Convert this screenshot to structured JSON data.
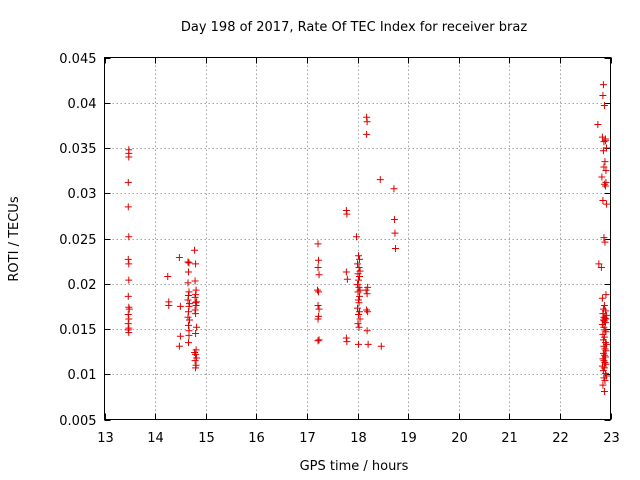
{
  "chart_data": {
    "type": "scatter",
    "title": "Day 198 of 2017, Rate Of TEC Index for receiver braz",
    "xlabel": "GPS time / hours",
    "ylabel": "ROTI / TECUs",
    "xlim": [
      13,
      23
    ],
    "ylim": [
      0.005,
      0.045
    ],
    "xticks": [
      13,
      14,
      15,
      16,
      17,
      18,
      19,
      20,
      21,
      22,
      23
    ],
    "xtick_labels": [
      "13",
      "14",
      "15",
      "16",
      "17",
      "18",
      "19",
      "20",
      "21",
      "22",
      "23"
    ],
    "yticks": [
      0.005,
      0.01,
      0.015,
      0.02,
      0.025,
      0.03,
      0.035,
      0.04,
      0.045
    ],
    "ytick_labels": [
      "0.005",
      "0.01",
      "0.015",
      "0.02",
      "0.025",
      "0.03",
      "0.035",
      "0.04",
      "0.045"
    ],
    "grid": true,
    "marker": "+",
    "marker_color": "#e00000",
    "series": [
      {
        "x": [
          13.48,
          13.48,
          13.48,
          13.47,
          13.47,
          13.48,
          13.47,
          13.48,
          13.48,
          13.47,
          13.48,
          13.49,
          13.47,
          13.48,
          13.47,
          13.48,
          13.47,
          13.48,
          14.25,
          14.27,
          14.27,
          14.48,
          14.5,
          14.5,
          14.48,
          14.65,
          14.67,
          14.66,
          14.65,
          14.67,
          14.66,
          14.65,
          14.68,
          14.67,
          14.66,
          14.65,
          14.68,
          14.66,
          14.67,
          14.67,
          14.66,
          14.78,
          14.8,
          14.79,
          14.81,
          14.8,
          14.79,
          14.82,
          14.8,
          14.81,
          14.79,
          14.8,
          14.82,
          14.8,
          14.81,
          14.78,
          14.8,
          14.82,
          14.79,
          14.81,
          14.8,
          17.22,
          17.23,
          17.22,
          17.24,
          17.21,
          17.23,
          17.22,
          17.24,
          17.23,
          17.22,
          17.24,
          17.22,
          17.78,
          17.79,
          17.78,
          17.8,
          17.78,
          17.79,
          17.98,
          18.02,
          18.04,
          18.0,
          18.03,
          18.05,
          18.01,
          18.04,
          18.02,
          18.0,
          18.03,
          18.05,
          18.01,
          18.04,
          18.02,
          18.03,
          18.0,
          18.04,
          18.02,
          18.05,
          18.01,
          18.03,
          18.02,
          18.18,
          18.19,
          18.18,
          18.2,
          18.17,
          18.19,
          18.18,
          18.2,
          18.19,
          18.21,
          18.45,
          18.47,
          18.72,
          18.73,
          18.74,
          18.75,
          22.75,
          22.77,
          22.82,
          22.85,
          22.88,
          22.84,
          22.9,
          22.87,
          22.92,
          22.86,
          22.89,
          22.91,
          22.83,
          22.88,
          22.9,
          22.85,
          22.92,
          22.87,
          22.89,
          22.91,
          22.84,
          22.88,
          22.86,
          22.9,
          22.85,
          22.92,
          22.87,
          22.89,
          22.91,
          22.86,
          22.88,
          22.9,
          22.84,
          22.87,
          22.89,
          22.91,
          22.85,
          22.88,
          22.86,
          22.9,
          22.92,
          22.87,
          22.89,
          22.91,
          22.86,
          22.88,
          22.9,
          22.85,
          22.87,
          22.89,
          22.91,
          22.84,
          22.88,
          22.86,
          22.9,
          22.92,
          22.87,
          22.89,
          22.85,
          22.88,
          22.86,
          22.9,
          22.87,
          22.91
        ],
        "y": [
          0.0348,
          0.0344,
          0.034,
          0.0312,
          0.0285,
          0.0252,
          0.0227,
          0.0222,
          0.0204,
          0.0186,
          0.0174,
          0.0172,
          0.0166,
          0.0161,
          0.0156,
          0.0151,
          0.0149,
          0.0146,
          0.0208,
          0.018,
          0.0176,
          0.0229,
          0.0175,
          0.0142,
          0.0131,
          0.0224,
          0.0223,
          0.0213,
          0.0201,
          0.0191,
          0.0187,
          0.0182,
          0.0178,
          0.0175,
          0.0169,
          0.0163,
          0.016,
          0.0154,
          0.0148,
          0.0143,
          0.0135,
          0.0237,
          0.0222,
          0.0203,
          0.0193,
          0.0188,
          0.0185,
          0.018,
          0.0179,
          0.0176,
          0.0171,
          0.0167,
          0.0152,
          0.0145,
          0.0127,
          0.0124,
          0.0122,
          0.0118,
          0.0115,
          0.011,
          0.0107,
          0.0244,
          0.0226,
          0.0218,
          0.021,
          0.0193,
          0.0191,
          0.0176,
          0.0172,
          0.0164,
          0.0161,
          0.0138,
          0.0137,
          0.0281,
          0.0277,
          0.0213,
          0.0205,
          0.014,
          0.0136,
          0.0252,
          0.0231,
          0.0227,
          0.0222,
          0.0218,
          0.0214,
          0.0211,
          0.0208,
          0.0204,
          0.0199,
          0.0196,
          0.0193,
          0.0191,
          0.0186,
          0.0182,
          0.0179,
          0.0173,
          0.0169,
          0.0166,
          0.0161,
          0.0156,
          0.0152,
          0.0133,
          0.0384,
          0.0379,
          0.0365,
          0.0196,
          0.0193,
          0.0189,
          0.0171,
          0.0169,
          0.0148,
          0.0133,
          0.0315,
          0.0131,
          0.0305,
          0.0271,
          0.0256,
          0.0239,
          0.0376,
          0.0222,
          0.0218,
          0.0408,
          0.0397,
          0.0362,
          0.036,
          0.0357,
          0.035,
          0.0347,
          0.0335,
          0.0325,
          0.0318,
          0.031,
          0.0308,
          0.0292,
          0.0288,
          0.0251,
          0.0246,
          0.0188,
          0.0184,
          0.0176,
          0.0172,
          0.017,
          0.0167,
          0.0165,
          0.0163,
          0.0162,
          0.0161,
          0.016,
          0.0159,
          0.0157,
          0.0155,
          0.0152,
          0.0149,
          0.0147,
          0.0144,
          0.0141,
          0.0138,
          0.0135,
          0.0133,
          0.0131,
          0.0128,
          0.0126,
          0.0123,
          0.0121,
          0.0119,
          0.0117,
          0.0115,
          0.0113,
          0.0111,
          0.0109,
          0.0107,
          0.0104,
          0.0101,
          0.0098,
          0.0096,
          0.0093,
          0.0088,
          0.0081,
          0.042,
          0.0358,
          0.0329,
          0.0312
        ]
      }
    ]
  }
}
